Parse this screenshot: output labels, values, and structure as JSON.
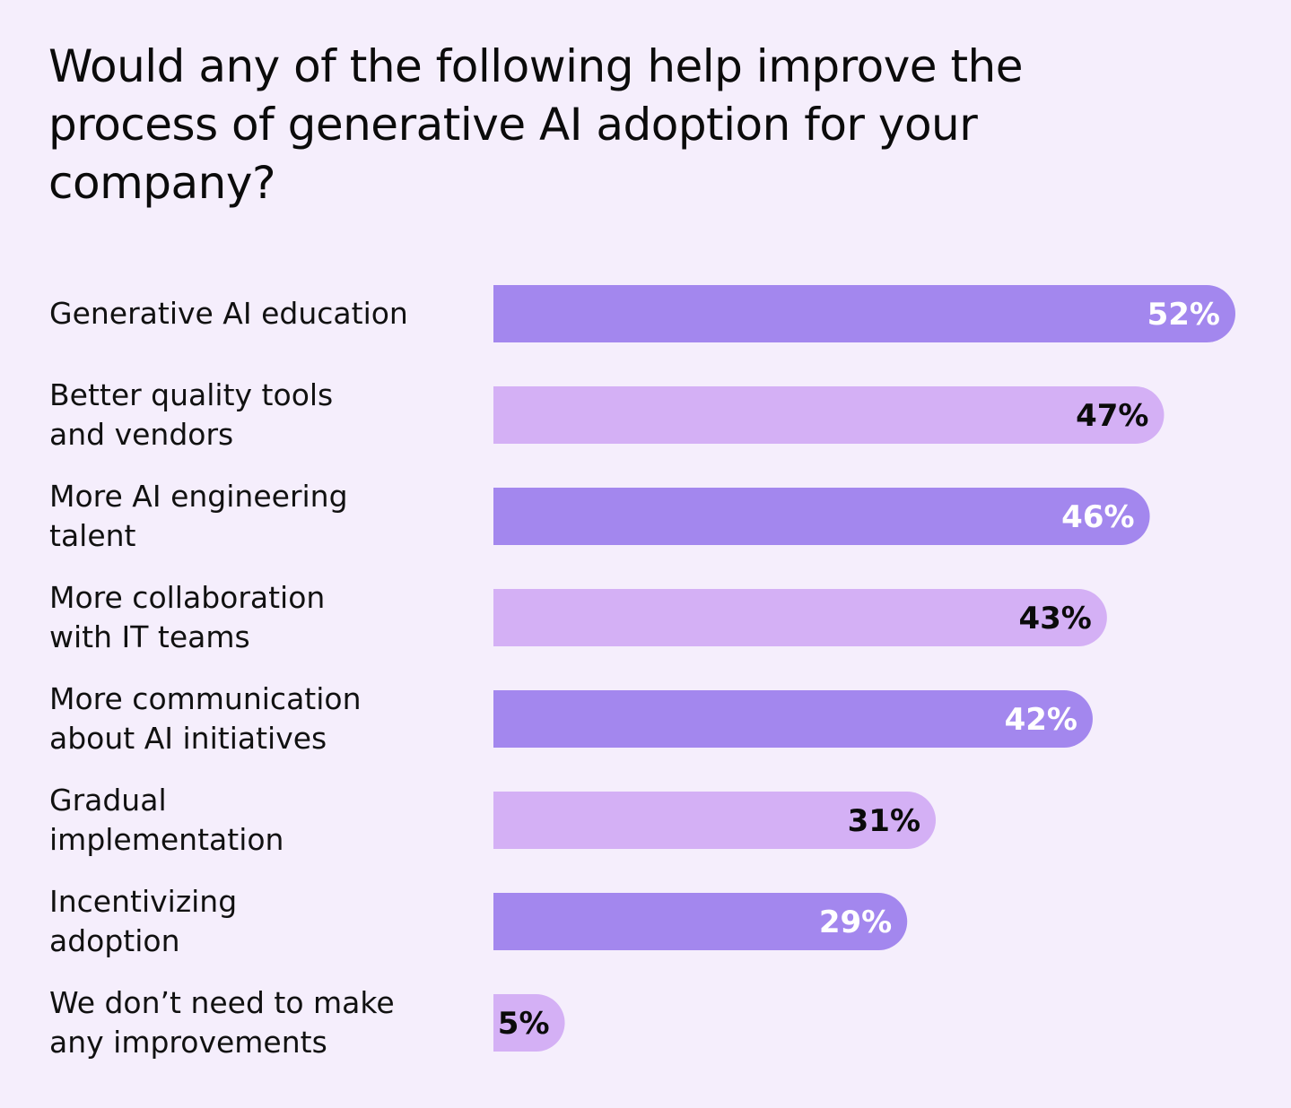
{
  "chart_data": {
    "type": "bar",
    "orientation": "horizontal",
    "title": "Would any of the following help improve the process of generative AI adoption for your company?",
    "categories": [
      [
        "Generative AI education"
      ],
      [
        "Better quality tools",
        "and vendors"
      ],
      [
        "More AI engineering",
        "talent"
      ],
      [
        "More collaboration",
        "with IT teams"
      ],
      [
        "More communication",
        "about AI initiatives"
      ],
      [
        "Gradual",
        "implementation"
      ],
      [
        "Incentivizing",
        "adoption"
      ],
      [
        "We don’t need to make",
        "any improvements"
      ]
    ],
    "values": [
      52,
      47,
      46,
      43,
      42,
      31,
      29,
      5
    ],
    "value_labels": [
      "52%",
      "47%",
      "46%",
      "43%",
      "42%",
      "31%",
      "29%",
      "5%"
    ],
    "unit": "%",
    "xlim": [
      0,
      52
    ],
    "xlabel": "",
    "ylabel": "",
    "grid": false,
    "legend": "none",
    "colors": {
      "bar_dark": "#A387EE",
      "bar_light": "#D4B0F5",
      "label_on_dark": "#FFFFFF",
      "label_on_light": "#0B0B0B",
      "background": "#F5EEFC"
    }
  }
}
